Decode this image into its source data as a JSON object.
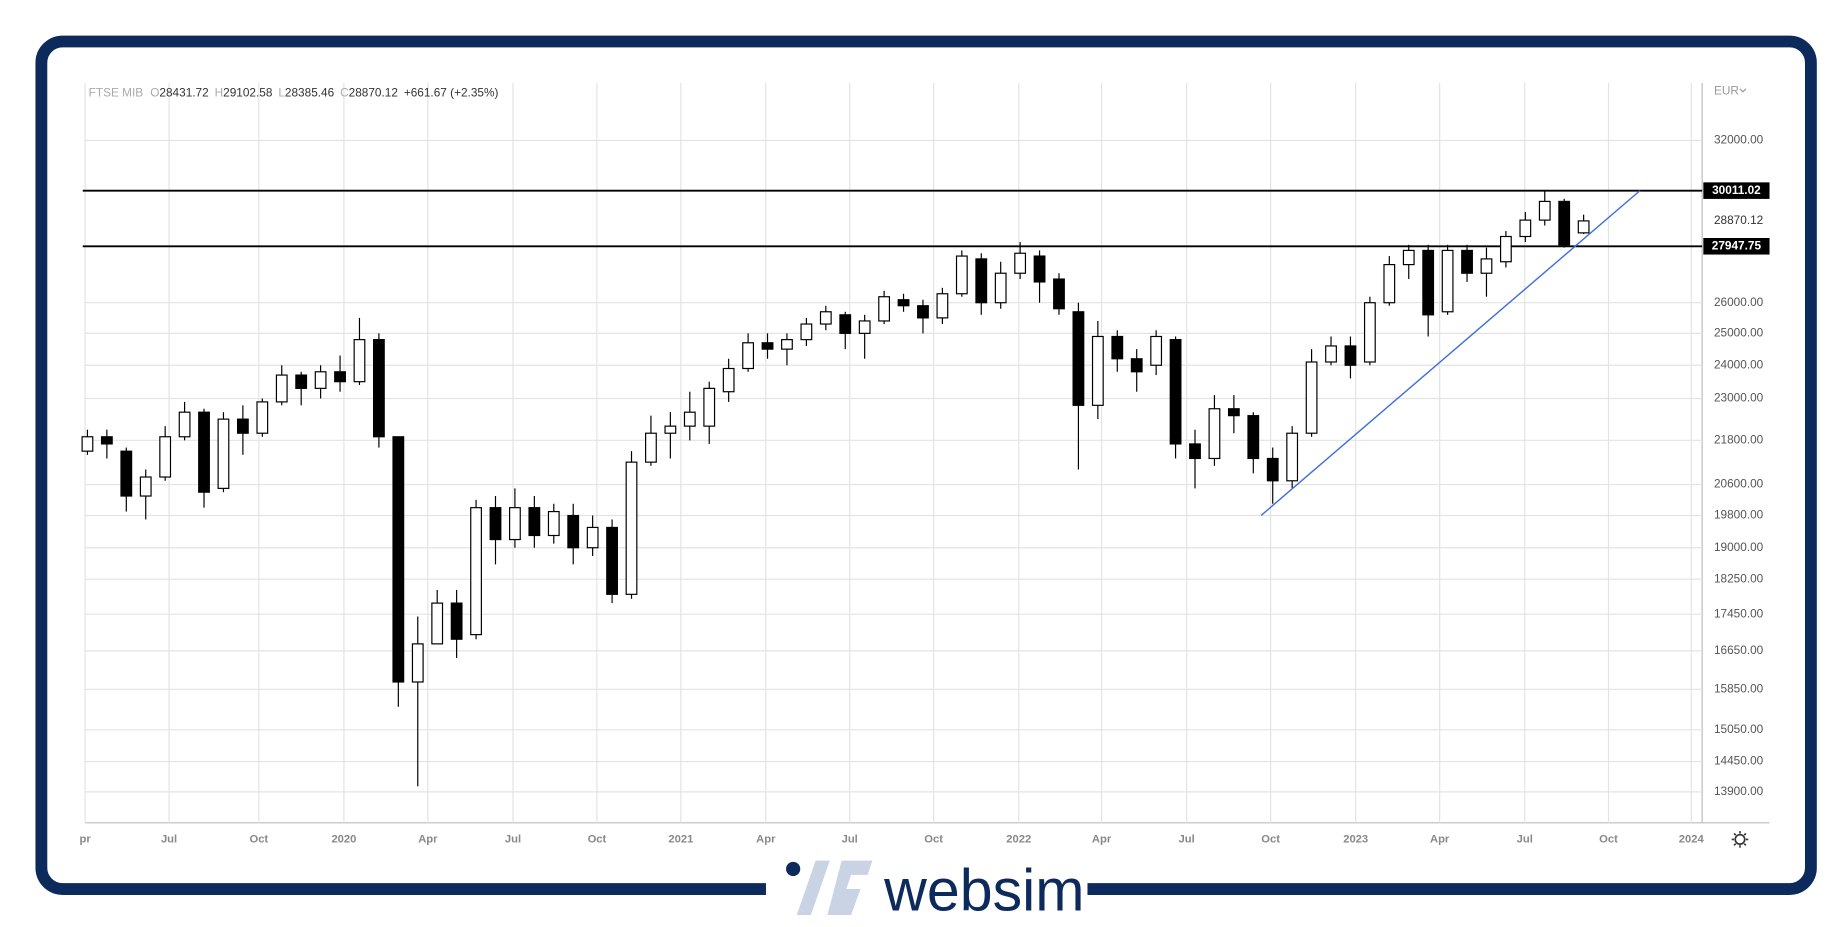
{
  "chart_data": {
    "type": "candlestick",
    "title": "FTSE MIB",
    "ohlc_labels": [
      "O",
      "H",
      "L",
      "C"
    ],
    "change_label": "+661.67 (+2.35%)",
    "currency": "EUR",
    "brand": "websim",
    "log_scale": true,
    "grid": true,
    "up_color": "#ffffff",
    "down_color": "#000000",
    "open": [
      21500,
      21900,
      21500,
      20300,
      20800,
      21900,
      22600,
      20500,
      22400,
      22000,
      22900,
      23700,
      23300,
      23800,
      23500,
      24800,
      21900,
      16000,
      16800,
      17700,
      17000,
      20000,
      19200,
      20000,
      19300,
      19800,
      19000,
      19500,
      17900,
      21200,
      22000,
      22200,
      22200,
      23200,
      23900,
      24700,
      24500,
      24800,
      25300,
      25600,
      25000,
      25400,
      26100,
      25900,
      25500,
      26300,
      27500,
      26000,
      27000,
      27600,
      26800,
      25700,
      22800,
      24900,
      24200,
      24000,
      24800,
      21700,
      21300,
      22700,
      22500,
      21300,
      20700,
      22000,
      24100,
      24600,
      24100,
      26000,
      27300,
      27800,
      25700,
      27800,
      27000,
      27400,
      28300,
      28900,
      29600,
      28431.72
    ],
    "high": [
      22100,
      22100,
      21600,
      21000,
      22200,
      22900,
      22700,
      22600,
      22800,
      23000,
      24000,
      23800,
      24000,
      24300,
      25500,
      25000,
      21900,
      17400,
      18000,
      18000,
      20200,
      20300,
      20500,
      20300,
      20100,
      20100,
      19800,
      19700,
      21500,
      22500,
      22600,
      23200,
      23500,
      24200,
      25000,
      25000,
      25000,
      25500,
      25900,
      25700,
      25600,
      26400,
      26300,
      26100,
      26500,
      27800,
      27700,
      27400,
      28100,
      27800,
      27000,
      26000,
      25400,
      25100,
      24500,
      25100,
      24900,
      22100,
      23100,
      23100,
      22600,
      21600,
      22200,
      24500,
      24900,
      24900,
      26200,
      27600,
      28000,
      28000,
      28000,
      28000,
      27900,
      28500,
      29200,
      30000,
      29700,
      29102.58
    ],
    "low": [
      21400,
      21300,
      19900,
      19700,
      20700,
      21800,
      20000,
      20400,
      21400,
      21900,
      22800,
      22800,
      23000,
      23200,
      23400,
      21600,
      15500,
      14000,
      16900,
      16500,
      16900,
      18600,
      19000,
      19000,
      19100,
      18600,
      18800,
      17700,
      17800,
      21100,
      21300,
      21800,
      21700,
      22900,
      23800,
      24200,
      24000,
      24600,
      25100,
      24500,
      24200,
      25300,
      25700,
      25000,
      25300,
      26200,
      25600,
      25800,
      26800,
      26000,
      25600,
      21000,
      22400,
      23800,
      23200,
      23700,
      21300,
      20500,
      21100,
      22000,
      20900,
      20100,
      20500,
      21900,
      24000,
      23600,
      24000,
      25900,
      26800,
      24900,
      25600,
      26700,
      26200,
      27200,
      28100,
      28700,
      27900,
      28385.46
    ],
    "close": [
      21900,
      21700,
      20300,
      20800,
      21900,
      22600,
      20400,
      22400,
      22000,
      22900,
      23700,
      23300,
      23800,
      23500,
      24800,
      21900,
      16000,
      16800,
      17700,
      16900,
      20000,
      19200,
      20000,
      19300,
      19900,
      19000,
      19500,
      17900,
      21200,
      22000,
      22200,
      22600,
      23300,
      23900,
      24700,
      24500,
      24800,
      25300,
      25700,
      25000,
      25400,
      26200,
      25900,
      25500,
      26300,
      27600,
      26000,
      27000,
      27700,
      26700,
      25800,
      22800,
      24900,
      24200,
      23800,
      24900,
      21700,
      21300,
      22700,
      22500,
      21300,
      20700,
      22000,
      24100,
      24600,
      24000,
      26000,
      27300,
      27800,
      25600,
      27800,
      27000,
      27500,
      28300,
      28900,
      29600,
      28000,
      28870.12
    ],
    "ylim": [
      13360,
      34450
    ],
    "yticks": [
      {
        "value": 32000,
        "label": "32000.00"
      },
      {
        "value": 26000,
        "label": "26000.00"
      },
      {
        "value": 25000,
        "label": "25000.00"
      },
      {
        "value": 24000,
        "label": "24000.00"
      },
      {
        "value": 23000,
        "label": "23000.00"
      },
      {
        "value": 21800,
        "label": "21800.00"
      },
      {
        "value": 20600,
        "label": "20600.00"
      },
      {
        "value": 19800,
        "label": "19800.00"
      },
      {
        "value": 19000,
        "label": "19000.00"
      },
      {
        "value": 18250,
        "label": "18250.00"
      },
      {
        "value": 17450,
        "label": "17450.00"
      },
      {
        "value": 16650,
        "label": "16650.00"
      },
      {
        "value": 15850,
        "label": "15850.00"
      },
      {
        "value": 15050,
        "label": "15050.00"
      },
      {
        "value": 14450,
        "label": "14450.00"
      },
      {
        "value": 13900,
        "label": "13900.00"
      }
    ],
    "xlim": [
      -0.12,
      83.1
    ],
    "xticks": [
      {
        "value": -0.12,
        "label": "pr"
      },
      {
        "value": 4.2,
        "label": "Jul"
      },
      {
        "value": 8.82,
        "label": "Oct"
      },
      {
        "value": 13.2,
        "label": "2020"
      },
      {
        "value": 17.52,
        "label": "Apr"
      },
      {
        "value": 21.9,
        "label": "Jul"
      },
      {
        "value": 26.22,
        "label": "Oct"
      },
      {
        "value": 30.54,
        "label": "2021"
      },
      {
        "value": 34.91,
        "label": "Apr"
      },
      {
        "value": 39.23,
        "label": "Jul"
      },
      {
        "value": 43.55,
        "label": "Oct"
      },
      {
        "value": 47.93,
        "label": "2022"
      },
      {
        "value": 52.19,
        "label": "Apr"
      },
      {
        "value": 56.57,
        "label": "Jul"
      },
      {
        "value": 60.89,
        "label": "Oct"
      },
      {
        "value": 65.27,
        "label": "2023"
      },
      {
        "value": 69.59,
        "label": "Apr"
      },
      {
        "value": 73.97,
        "label": "Jul"
      },
      {
        "value": 78.28,
        "label": "Oct"
      },
      {
        "value": 82.54,
        "label": "2024"
      }
    ],
    "hlines": [
      30011.02,
      27947.75
    ],
    "trendline": {
      "x": [
        60.4,
        79.9
      ],
      "y": [
        19800,
        30011
      ],
      "color": "#3b6fe0"
    }
  }
}
